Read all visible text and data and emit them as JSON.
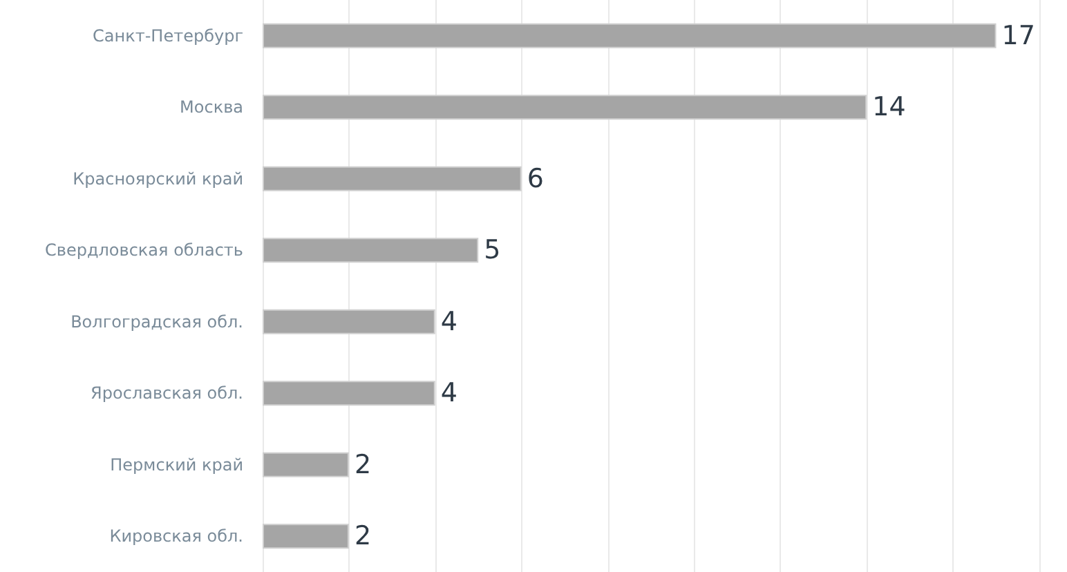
{
  "chart_data": {
    "type": "bar",
    "orientation": "horizontal",
    "categories": [
      "Санкт-Петербург",
      "Москва",
      "Красноярский край",
      "Свердловская область",
      "Волгоградская обл.",
      "Ярославская обл.",
      "Пермский край",
      "Кировская обл."
    ],
    "values": [
      17,
      14,
      6,
      5,
      4,
      4,
      2,
      2
    ],
    "color": "#a5a5a5",
    "xlim": [
      0,
      18
    ],
    "xticks": [
      {
        "value": 0,
        "label": null
      },
      {
        "value": 2,
        "label": null
      },
      {
        "value": 4,
        "label": null
      },
      {
        "value": 6,
        "label": null
      },
      {
        "value": 8,
        "label": null
      },
      {
        "value": 10,
        "label": null
      },
      {
        "value": 12,
        "label": null
      },
      {
        "value": 14,
        "label": null
      },
      {
        "value": 16,
        "label": null
      },
      {
        "value": 18,
        "label": null
      }
    ],
    "grid": "x",
    "tick_labels": "y",
    "data_labels": true
  }
}
